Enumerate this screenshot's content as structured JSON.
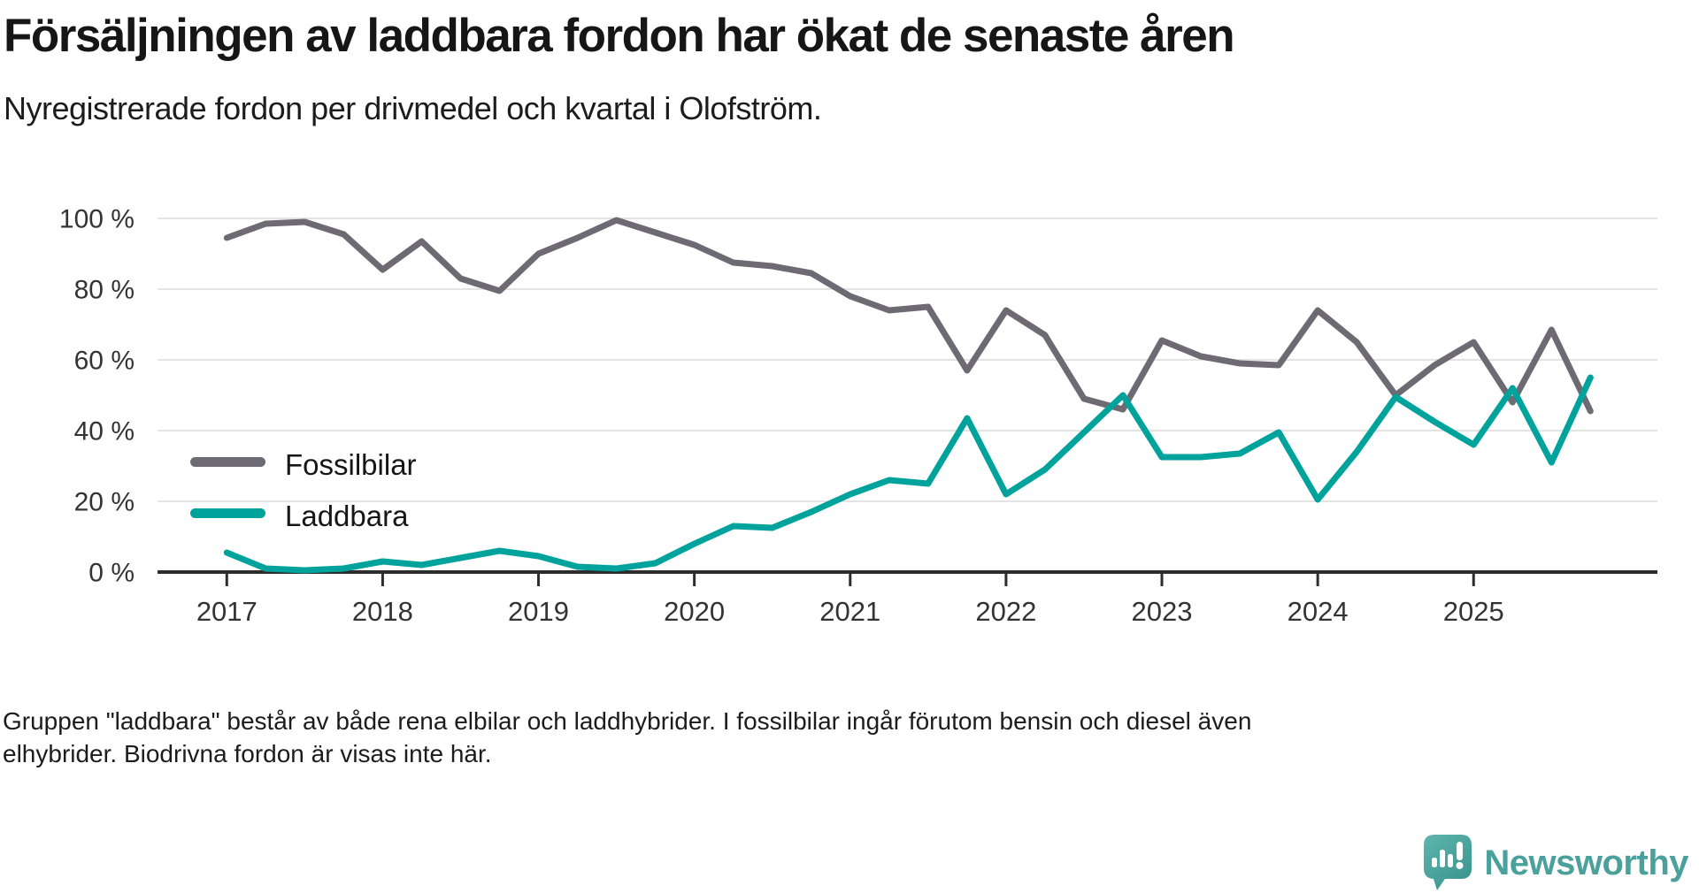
{
  "chart_data": {
    "type": "line",
    "title": "Försäljningen av laddbara fordon har ökat de senaste åren",
    "subtitle": "Nyregistrerade fordon per drivmedel och kvartal i Olofström.",
    "unit": "%",
    "frequency": "quarterly",
    "start_quarter": "2017 Q1",
    "end_quarter": "2025 Q4",
    "ylim": [
      0,
      100
    ],
    "grid": "horizontal",
    "legend_position": "inside-left",
    "x_tick_labels": [
      "2017",
      "2018",
      "2019",
      "2020",
      "2021",
      "2022",
      "2023",
      "2024",
      "2025"
    ],
    "y_ticks": [
      {
        "value": 100,
        "label": "100 %"
      },
      {
        "value": 80,
        "label": "80 %"
      },
      {
        "value": 60,
        "label": "60 %"
      },
      {
        "value": 40,
        "label": "40 %"
      },
      {
        "value": 20,
        "label": "20 %"
      },
      {
        "value": 0,
        "label": "0 %"
      }
    ],
    "series": [
      {
        "name": "Fossilbilar",
        "color": "#6E6A73",
        "values": [
          94.5,
          98.5,
          99,
          95.5,
          85.5,
          93.5,
          83,
          79.5,
          90,
          94.5,
          99.5,
          96,
          92.5,
          87.5,
          86.5,
          84.5,
          78,
          74,
          75,
          57,
          74,
          67,
          49,
          46,
          65.5,
          61,
          59,
          58.5,
          74,
          65,
          50,
          58.5,
          65,
          48,
          68.5,
          45.5
        ]
      },
      {
        "name": "Laddbara",
        "color": "#00A39B",
        "values": [
          5.5,
          1,
          0.5,
          1,
          3,
          2,
          4,
          6,
          4.5,
          1.5,
          1,
          2.5,
          8,
          13,
          12.5,
          17,
          22,
          26,
          25,
          43.5,
          22,
          29,
          39.5,
          50,
          32.5,
          32.5,
          33.5,
          39.5,
          20.5,
          34,
          49.5,
          42.5,
          36,
          52,
          31,
          55
        ]
      }
    ]
  },
  "legend": {
    "items": [
      {
        "label": "Fossilbilar",
        "color": "#6E6A73"
      },
      {
        "label": "Laddbara",
        "color": "#00A39B"
      }
    ]
  },
  "footer": {
    "lines": [
      "Gruppen \"laddbara\" består av både rena elbilar och laddhybrider. I fossilbilar ingår förutom bensin och diesel även",
      "elhybrider. Biodrivna fordon är visas inte här."
    ]
  },
  "branding": {
    "logo_text": "Newsworthy",
    "logo_color": "#4AA19B"
  },
  "colors": {
    "grid": "#E3E3E3",
    "axis": "#2D2D2D",
    "tick_text": "#333333",
    "legend_text": "#161616"
  }
}
